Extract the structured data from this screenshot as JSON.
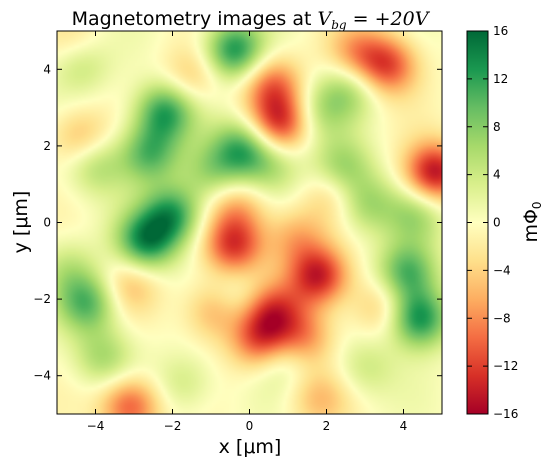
{
  "chart_data": {
    "type": "heatmap",
    "title": {
      "text": "Magnetometry images at ",
      "math": "V",
      "math_sub": "bg",
      "math_rest": " = +20V"
    },
    "xlabel": "x [μm]",
    "ylabel": "y [μm]",
    "xlim": [
      -5,
      5
    ],
    "ylim": [
      -5,
      5
    ],
    "xticks": [
      -4,
      -2,
      0,
      2,
      4
    ],
    "xtick_labels": [
      "−4",
      "−2",
      "0",
      "2",
      "4"
    ],
    "yticks": [
      -4,
      -2,
      0,
      2,
      4
    ],
    "ytick_labels": [
      "−4",
      "−2",
      "0",
      "2",
      "4"
    ],
    "colorbar": {
      "label": "mΦ",
      "label_sub": "0",
      "vmin": -16,
      "vmax": 16,
      "ticks": [
        -16,
        -12,
        -8,
        -4,
        0,
        4,
        8,
        12,
        16
      ],
      "tick_labels": [
        "−16",
        "−12",
        "−8",
        "−4",
        "0",
        "4",
        "8",
        "12",
        "16"
      ],
      "colormap": "RdYlGn",
      "colors": [
        "#a50026",
        "#d73027",
        "#f46d43",
        "#fdae61",
        "#fee08b",
        "#ffffbf",
        "#d9ef8b",
        "#a6d96a",
        "#66bd63",
        "#1a9850",
        "#006837"
      ]
    },
    "features": [
      {
        "x": -0.4,
        "y": 4.5,
        "value": 13
      },
      {
        "x": -2.2,
        "y": 2.9,
        "value": 12
      },
      {
        "x": -2.6,
        "y": 1.8,
        "value": 10
      },
      {
        "x": -2.0,
        "y": 0.2,
        "value": 12
      },
      {
        "x": -2.7,
        "y": -0.5,
        "value": 13
      },
      {
        "x": -1.0,
        "y": 1.3,
        "value": 6
      },
      {
        "x": -0.2,
        "y": 1.9,
        "value": 11
      },
      {
        "x": 0.6,
        "y": 1.5,
        "value": 5
      },
      {
        "x": -4.0,
        "y": 1.5,
        "value": 6
      },
      {
        "x": -4.4,
        "y": 4.2,
        "value": 6
      },
      {
        "x": -4.2,
        "y": -2.1,
        "value": 10
      },
      {
        "x": -4.7,
        "y": -1.2,
        "value": 4
      },
      {
        "x": 4.4,
        "y": -2.5,
        "value": 14
      },
      {
        "x": 4.1,
        "y": -1.3,
        "value": 11
      },
      {
        "x": 3.0,
        "y": 0.5,
        "value": 7
      },
      {
        "x": 2.4,
        "y": 1.4,
        "value": 8
      },
      {
        "x": 2.6,
        "y": 3.5,
        "value": 6
      },
      {
        "x": 1.8,
        "y": 2.9,
        "value": 5
      },
      {
        "x": 0.8,
        "y": -3.5,
        "value": 5
      },
      {
        "x": -0.3,
        "y": -2.0,
        "value": 4
      },
      {
        "x": -1.7,
        "y": -4.2,
        "value": 4
      },
      {
        "x": -3.8,
        "y": -3.5,
        "value": 6
      },
      {
        "x": 3.0,
        "y": -3.8,
        "value": 4
      },
      {
        "x": 4.3,
        "y": 0.2,
        "value": 6
      },
      {
        "x": 4.8,
        "y": 1.3,
        "value": -15
      },
      {
        "x": 3.6,
        "y": 4.1,
        "value": -11
      },
      {
        "x": 2.8,
        "y": 4.4,
        "value": -7
      },
      {
        "x": 0.8,
        "y": 2.6,
        "value": -12
      },
      {
        "x": 0.6,
        "y": 3.6,
        "value": -9
      },
      {
        "x": -0.3,
        "y": 0.4,
        "value": -6
      },
      {
        "x": -0.4,
        "y": -0.6,
        "value": -12
      },
      {
        "x": 1.8,
        "y": -1.4,
        "value": -14
      },
      {
        "x": 0.6,
        "y": -2.3,
        "value": -10
      },
      {
        "x": 0.3,
        "y": -3.1,
        "value": -11
      },
      {
        "x": 1.4,
        "y": -3.0,
        "value": -8
      },
      {
        "x": -0.9,
        "y": -2.3,
        "value": -7
      },
      {
        "x": -3.1,
        "y": -4.8,
        "value": -11
      },
      {
        "x": -4.4,
        "y": 2.2,
        "value": -6
      },
      {
        "x": -4.5,
        "y": 4.6,
        "value": -4
      },
      {
        "x": 1.2,
        "y": -0.4,
        "value": -6
      },
      {
        "x": 3.4,
        "y": -2.2,
        "value": -5
      },
      {
        "x": 2.2,
        "y": 0.8,
        "value": -5
      },
      {
        "x": -1.5,
        "y": 3.8,
        "value": -5
      },
      {
        "x": -3.1,
        "y": -1.6,
        "value": -5
      },
      {
        "x": 1.8,
        "y": -4.6,
        "value": -5
      }
    ]
  }
}
